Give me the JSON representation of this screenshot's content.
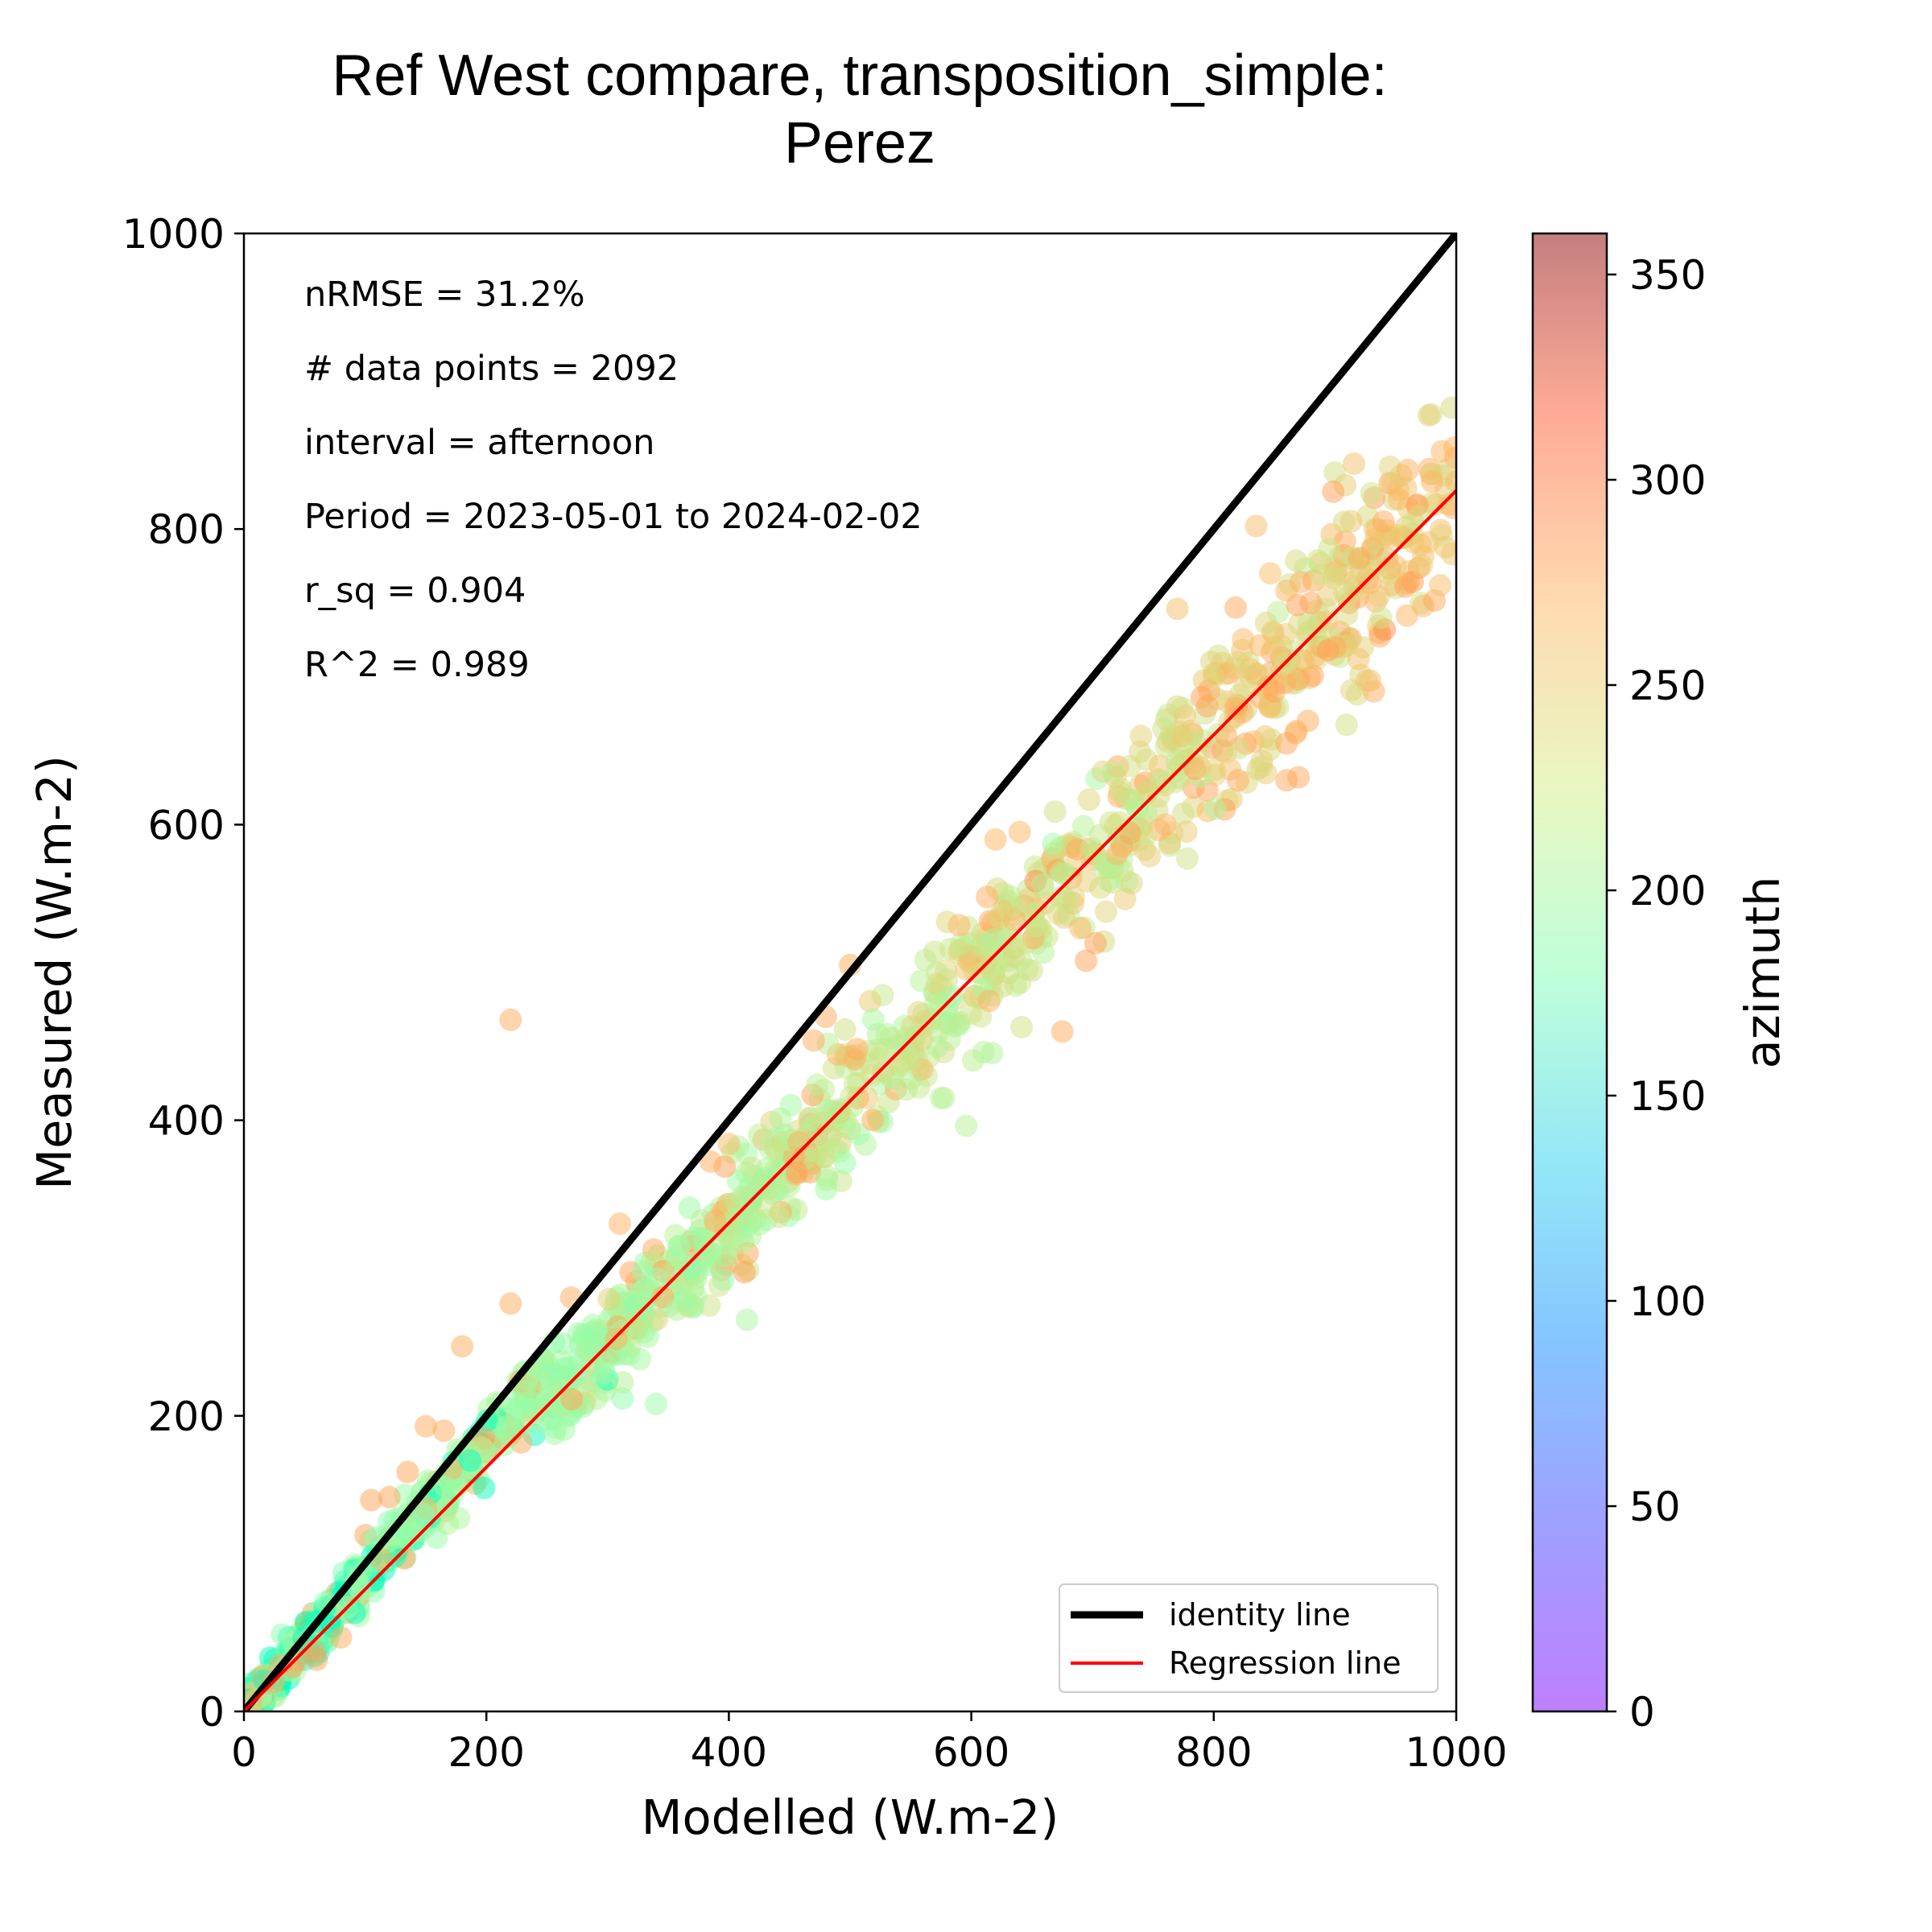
{
  "chart_data": {
    "type": "scatter",
    "title_line1": "Ref West compare, transposition_simple:",
    "title_line2": "Perez",
    "xlabel": "Modelled (W.m-2)",
    "ylabel": "Measured (W.m-2)",
    "xlim": [
      0,
      1000
    ],
    "ylim": [
      0,
      1000
    ],
    "xticks": [
      "0",
      "200",
      "400",
      "600",
      "800",
      "1000"
    ],
    "yticks": [
      "0",
      "200",
      "400",
      "600",
      "800",
      "1000"
    ],
    "grid": false,
    "stats": [
      "nRMSE = 31.2%",
      "# data points = 2092",
      "interval = afternoon",
      "Period = 2023-05-01 to 2024-02-02",
      "r_sq = 0.904",
      "R^2 = 0.989"
    ],
    "legend": {
      "placement": "lower-right",
      "entries": [
        {
          "label": "identity line",
          "color": "#000000"
        },
        {
          "label": "Regression line",
          "color": "#ff0000"
        }
      ]
    },
    "identity_line": {
      "x": [
        0,
        1000
      ],
      "y": [
        0,
        1000
      ]
    },
    "regression_line": {
      "x": [
        0,
        1000
      ],
      "y": [
        0,
        826
      ]
    },
    "colorbar": {
      "label": "azimuth",
      "range": [
        0,
        360
      ],
      "ticks": [
        "0",
        "50",
        "100",
        "150",
        "200",
        "250",
        "300",
        "350"
      ],
      "colormap": "rainbow",
      "alpha": 0.5
    },
    "point_count_shown": 2092,
    "points": [
      [
        220,
        468,
        275
      ],
      [
        500,
        505,
        275
      ],
      [
        620,
        590,
        270
      ],
      [
        640,
        595,
        270
      ],
      [
        835,
        802,
        265
      ],
      [
        770,
        746,
        262
      ],
      [
        675,
        460,
        275
      ],
      [
        690,
        530,
        270
      ],
      [
        590,
        532,
        270
      ],
      [
        575,
        415,
        215
      ],
      [
        610,
        446,
        215
      ],
      [
        415,
        265,
        210
      ],
      [
        340,
        208,
        200
      ],
      [
        220,
        276,
        275
      ],
      [
        180,
        247,
        275
      ],
      [
        385,
        372,
        275
      ],
      [
        400,
        384,
        265
      ],
      [
        470,
        454,
        275
      ],
      [
        480,
        470,
        275
      ],
      [
        270,
        280,
        275
      ],
      [
        310,
        330,
        272
      ],
      [
        820,
        630,
        275
      ],
      [
        860,
        630,
        278
      ],
      [
        870,
        632,
        278
      ],
      [
        900,
        720,
        278
      ],
      [
        920,
        780,
        278
      ],
      [
        940,
        805,
        275
      ],
      [
        960,
        840,
        272
      ],
      [
        980,
        832,
        270
      ],
      [
        1000,
        832,
        265
      ],
      [
        950,
        775,
        262
      ],
      [
        880,
        750,
        280
      ],
      [
        850,
        690,
        280
      ],
      [
        860,
        655,
        280
      ],
      [
        720,
        580,
        272
      ],
      [
        760,
        600,
        272
      ],
      [
        740,
        660,
        250
      ],
      [
        770,
        680,
        245
      ],
      [
        800,
        700,
        250
      ],
      [
        820,
        710,
        250
      ],
      [
        120,
        145,
        280
      ],
      [
        105,
        143,
        280
      ],
      [
        135,
        162,
        280
      ],
      [
        150,
        193,
        275
      ],
      [
        165,
        190,
        275
      ],
      [
        60,
        35,
        280
      ],
      [
        40,
        30,
        280
      ],
      [
        80,
        50,
        275
      ],
      [
        25,
        20,
        275
      ],
      [
        10,
        8,
        240
      ]
    ]
  }
}
